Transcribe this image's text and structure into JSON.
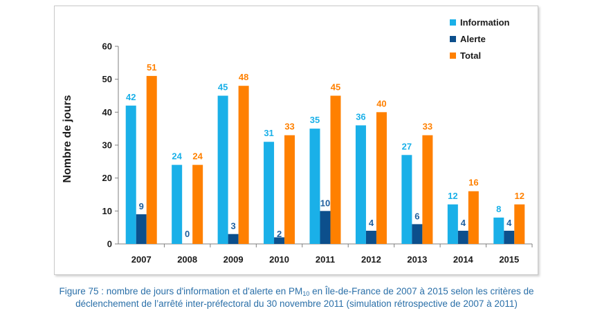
{
  "chart_data": {
    "type": "bar",
    "categories": [
      "2007",
      "2008",
      "2009",
      "2010",
      "2011",
      "2012",
      "2013",
      "2014",
      "2015"
    ],
    "series": [
      {
        "name": "Information",
        "color": "#1ab0e8",
        "label_color": "#1ab0e8",
        "values": [
          42,
          24,
          45,
          31,
          35,
          36,
          27,
          12,
          8
        ]
      },
      {
        "name": "Alerte",
        "color": "#0c4f8c",
        "label_color": "#1f5f9e",
        "values": [
          9,
          0,
          3,
          2,
          10,
          4,
          6,
          4,
          4
        ]
      },
      {
        "name": "Total",
        "color": "#ff8000",
        "label_color": "#ff8000",
        "values": [
          51,
          24,
          48,
          33,
          45,
          40,
          33,
          16,
          12
        ]
      }
    ],
    "ylabel": "Nombre de jours",
    "ylim": [
      0,
      60
    ],
    "yticks": [
      0,
      10,
      20,
      30,
      40,
      50,
      60
    ],
    "grid": false,
    "legend_position": "top-right"
  },
  "caption": {
    "line1_before": "Figure 75 : nombre de jours d'information et d'alerte en PM",
    "line1_sub": "10",
    "line1_after": " en Île-de-France de 2007 à 2015 selon les critères de",
    "line2": "déclenchement de l’arrêté inter-préfectoral du 30 novembre 2011 (simulation rétrospective de 2007 à 2011)"
  }
}
